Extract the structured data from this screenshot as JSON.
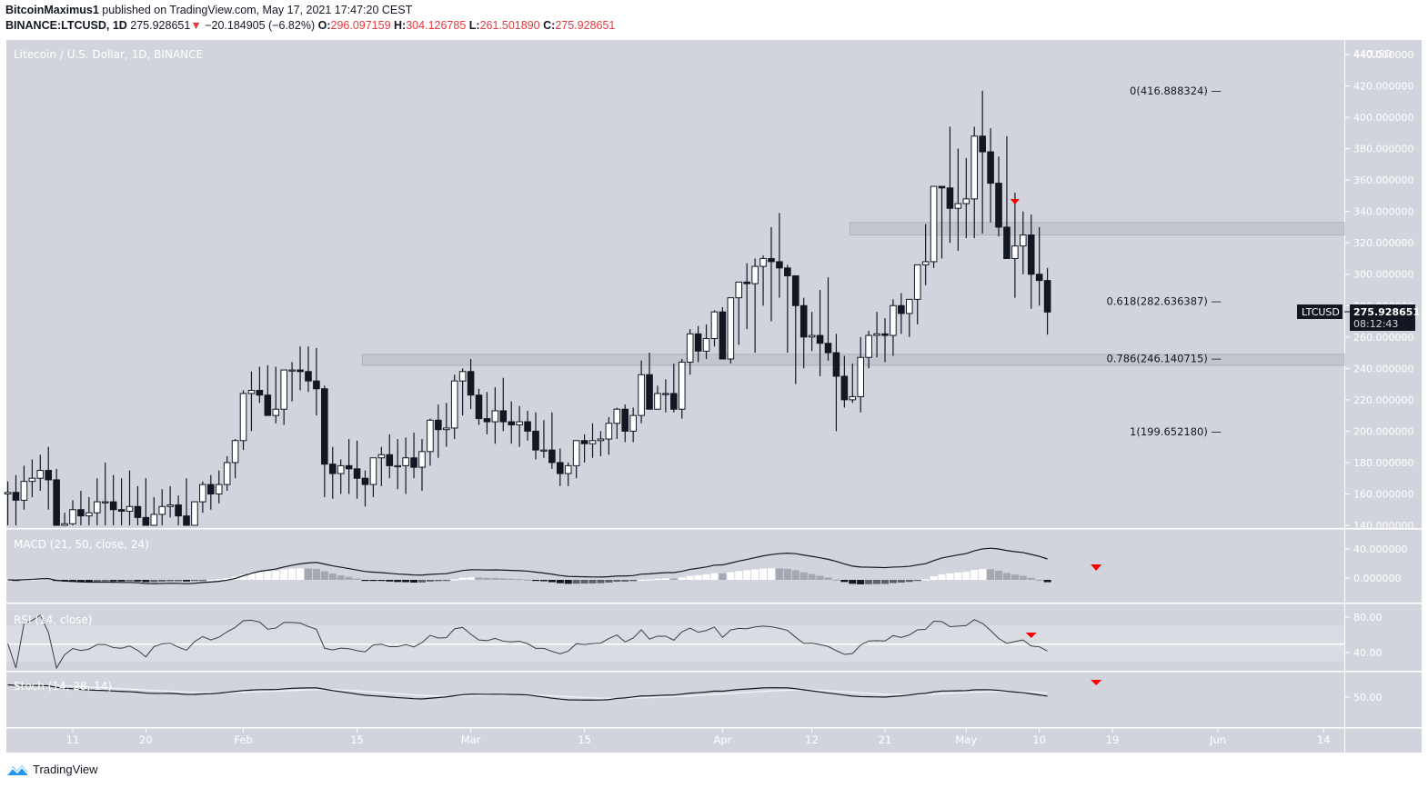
{
  "header": {
    "author": "BitcoinMaximus1",
    "published_text": " published on TradingView.com, May 17, 2021 17:47:20 CEST",
    "symbol_line": "BINANCE:LTCUSD, 1D",
    "last_price": "275.928651",
    "change_arrow": "▼",
    "change": "−20.184905 (−6.82%)",
    "o_label": "O:",
    "o_value": "296.097159",
    "h_label": "H:",
    "h_value": "304.126785",
    "l_label": "L:",
    "l_value": "261.501890",
    "c_label": "C:",
    "c_value": "275.928651"
  },
  "chart": {
    "title": "Litecoin / U.S. Dollar, 1D, BINANCE",
    "currency_label": "USD",
    "price_tag_symbol": "LTCUSD",
    "price_tag_value": "275.928651",
    "price_tag_countdown": "08:12:43",
    "macd_label": "MACD (21, 50, close, 24)",
    "rsi_label": "RSI (14, close)",
    "stoch_label": "Stoch (14, 28, 14)",
    "fib_levels": [
      {
        "label": "0(416.888324)",
        "value": 416.888324
      },
      {
        "label": "0.618(282.636387)",
        "value": 282.636387
      },
      {
        "label": "0.786(246.140715)",
        "value": 246.140715
      },
      {
        "label": "1(199.652180)",
        "value": 199.65218
      }
    ],
    "resistance_zones": [
      {
        "name": "upper-resistance-zone",
        "from": 325,
        "to": 333,
        "x_start_day": 95
      },
      {
        "name": "lower-support-zone",
        "from": 242,
        "to": 249,
        "x_start_day": 35
      }
    ],
    "bearish_markers": [
      "price",
      "macd",
      "rsi",
      "stoch"
    ]
  },
  "price_axis": {
    "ticks": [
      "440.000000",
      "420.000000",
      "400.000000",
      "380.000000",
      "360.000000",
      "340.000000",
      "320.000000",
      "300.000000",
      "280.000000",
      "260.000000",
      "240.000000",
      "220.000000",
      "200.000000",
      "180.000000",
      "160.000000",
      "140.000000"
    ]
  },
  "macd_axis": {
    "ticks": [
      "40.000000",
      "0.000000"
    ]
  },
  "rsi_axis": {
    "ticks": [
      "80.00",
      "40.00"
    ]
  },
  "stoch_axis": {
    "ticks": [
      "50.00"
    ]
  },
  "time_axis": {
    "ticks": [
      {
        "label": "11",
        "day": 0
      },
      {
        "label": "20",
        "day": 9
      },
      {
        "label": "Feb",
        "day": 21
      },
      {
        "label": "15",
        "day": 35
      },
      {
        "label": "Mar",
        "day": 49
      },
      {
        "label": "15",
        "day": 63
      },
      {
        "label": "Apr",
        "day": 80
      },
      {
        "label": "12",
        "day": 91
      },
      {
        "label": "21",
        "day": 100
      },
      {
        "label": "May",
        "day": 110
      },
      {
        "label": "10",
        "day": 119
      },
      {
        "label": "19",
        "day": 128
      },
      {
        "label": "Jun",
        "day": 141
      },
      {
        "label": "14",
        "day": 154
      }
    ]
  },
  "footer": {
    "brand": "TradingView"
  },
  "chart_data": {
    "type": "candlestick",
    "title": "Litecoin / U.S. Dollar, 1D, BINANCE",
    "symbol": "BINANCE:LTCUSD",
    "timeframe": "1D",
    "ylabel": "USD",
    "ylim": [
      140,
      440
    ],
    "x_tick_labels": [
      "11",
      "20",
      "Feb",
      "15",
      "Mar",
      "15",
      "Apr",
      "12",
      "21",
      "May",
      "10",
      "19",
      "Jun",
      "14"
    ],
    "fibonacci": {
      "0": 416.888324,
      "0.618": 282.636387,
      "0.786": 246.140715,
      "1": 199.65218
    },
    "last": {
      "open": 296.097159,
      "high": 304.126785,
      "low": 261.50189,
      "close": 275.928651,
      "change": -20.184905,
      "change_pct": -6.82
    },
    "candles_start_day": -8,
    "candles": [
      [
        160,
        168,
        125,
        161
      ],
      [
        161,
        172,
        140,
        156
      ],
      [
        156,
        178,
        150,
        168
      ],
      [
        168,
        182,
        158,
        170
      ],
      [
        170,
        185,
        162,
        175
      ],
      [
        175,
        190,
        150,
        169
      ],
      [
        169,
        176,
        108,
        125
      ],
      [
        125,
        148,
        110,
        141
      ],
      [
        141,
        156,
        128,
        150
      ],
      [
        150,
        162,
        132,
        146
      ],
      [
        146,
        158,
        120,
        148
      ],
      [
        148,
        170,
        130,
        155
      ],
      [
        155,
        180,
        140,
        155
      ],
      [
        155,
        172,
        132,
        150
      ],
      [
        150,
        170,
        128,
        149
      ],
      [
        149,
        175,
        135,
        152
      ],
      [
        152,
        165,
        133,
        145
      ],
      [
        145,
        170,
        120,
        132
      ],
      [
        132,
        158,
        120,
        147
      ],
      [
        147,
        163,
        139,
        152
      ],
      [
        152,
        165,
        145,
        153
      ],
      [
        153,
        159,
        140,
        146
      ],
      [
        146,
        170,
        133,
        140
      ],
      [
        140,
        155,
        132,
        155
      ],
      [
        155,
        168,
        148,
        166
      ],
      [
        166,
        172,
        150,
        160
      ],
      [
        160,
        175,
        154,
        166
      ],
      [
        166,
        184,
        162,
        180
      ],
      [
        180,
        195,
        170,
        194
      ],
      [
        194,
        226,
        188,
        224
      ],
      [
        224,
        238,
        200,
        226
      ],
      [
        226,
        241,
        218,
        223
      ],
      [
        223,
        242,
        212,
        210
      ],
      [
        210,
        241,
        205,
        214
      ],
      [
        214,
        237,
        204,
        239
      ],
      [
        239,
        244,
        219,
        239
      ],
      [
        239,
        254,
        226,
        238
      ],
      [
        238,
        254,
        225,
        232
      ],
      [
        232,
        253,
        210,
        227
      ],
      [
        227,
        229,
        158,
        179
      ],
      [
        179,
        190,
        157,
        173
      ],
      [
        173,
        182,
        160,
        178
      ],
      [
        178,
        195,
        160,
        176
      ],
      [
        176,
        194,
        157,
        170
      ],
      [
        170,
        175,
        152,
        166
      ],
      [
        166,
        183,
        158,
        183
      ],
      [
        183,
        190,
        165,
        185
      ],
      [
        185,
        198,
        170,
        178
      ],
      [
        178,
        195,
        163,
        178
      ],
      [
        178,
        196,
        160,
        183
      ],
      [
        183,
        199,
        170,
        177
      ],
      [
        177,
        195,
        162,
        187
      ],
      [
        187,
        208,
        178,
        207
      ],
      [
        207,
        217,
        183,
        201
      ],
      [
        201,
        218,
        190,
        202
      ],
      [
        202,
        236,
        195,
        232
      ],
      [
        232,
        240,
        210,
        238
      ],
      [
        238,
        246,
        214,
        223
      ],
      [
        223,
        227,
        204,
        208
      ],
      [
        208,
        225,
        198,
        206
      ],
      [
        206,
        228,
        192,
        213
      ],
      [
        213,
        234,
        200,
        206
      ],
      [
        206,
        219,
        192,
        204
      ],
      [
        204,
        216,
        190,
        206
      ],
      [
        206,
        213,
        194,
        200
      ],
      [
        200,
        212,
        182,
        188
      ],
      [
        188,
        207,
        183,
        188
      ],
      [
        188,
        212,
        176,
        180
      ],
      [
        180,
        189,
        165,
        173
      ],
      [
        173,
        180,
        165,
        178
      ],
      [
        178,
        193,
        170,
        194
      ],
      [
        194,
        198,
        180,
        192
      ],
      [
        192,
        205,
        183,
        194
      ],
      [
        194,
        200,
        184,
        195
      ],
      [
        195,
        209,
        185,
        205
      ],
      [
        205,
        215,
        195,
        214
      ],
      [
        214,
        217,
        193,
        200
      ],
      [
        200,
        215,
        193,
        210
      ],
      [
        210,
        245,
        205,
        236
      ],
      [
        236,
        250,
        215,
        214
      ],
      [
        214,
        229,
        215,
        224
      ],
      [
        224,
        233,
        212,
        224
      ],
      [
        224,
        243,
        212,
        214
      ],
      [
        214,
        246,
        208,
        244
      ],
      [
        244,
        265,
        236,
        262
      ],
      [
        262,
        267,
        244,
        251
      ],
      [
        251,
        268,
        246,
        259
      ],
      [
        259,
        277,
        254,
        276
      ],
      [
        276,
        279,
        247,
        246
      ],
      [
        246,
        283,
        243,
        285
      ],
      [
        285,
        293,
        255,
        295
      ],
      [
        295,
        307,
        265,
        294
      ],
      [
        294,
        310,
        250,
        305
      ],
      [
        305,
        312,
        280,
        310
      ],
      [
        310,
        330,
        270,
        308
      ],
      [
        308,
        339,
        285,
        304
      ],
      [
        304,
        306,
        250,
        299
      ],
      [
        299,
        290,
        230,
        280
      ],
      [
        280,
        285,
        240,
        260
      ],
      [
        260,
        276,
        251,
        261
      ],
      [
        261,
        290,
        235,
        256
      ],
      [
        256,
        298,
        245,
        250
      ],
      [
        250,
        262,
        200,
        235
      ],
      [
        235,
        248,
        215,
        220
      ],
      [
        220,
        243,
        218,
        222
      ],
      [
        222,
        260,
        212,
        247
      ],
      [
        247,
        264,
        240,
        261
      ],
      [
        261,
        276,
        247,
        262
      ],
      [
        262,
        272,
        244,
        261
      ],
      [
        261,
        284,
        248,
        280
      ],
      [
        280,
        288,
        262,
        275
      ],
      [
        275,
        281,
        260,
        284
      ],
      [
        284,
        306,
        268,
        306
      ],
      [
        306,
        332,
        293,
        308
      ],
      [
        308,
        332,
        304,
        356
      ],
      [
        356,
        356,
        310,
        355
      ],
      [
        355,
        394,
        320,
        342
      ],
      [
        342,
        380,
        315,
        345
      ],
      [
        345,
        374,
        323,
        348
      ],
      [
        348,
        394,
        323,
        388
      ],
      [
        388,
        417,
        326,
        378
      ],
      [
        378,
        393,
        333,
        358
      ],
      [
        358,
        375,
        324,
        330
      ],
      [
        330,
        388,
        314,
        310
      ],
      [
        310,
        352,
        285,
        318
      ],
      [
        318,
        340,
        300,
        325
      ],
      [
        325,
        338,
        278,
        300
      ],
      [
        300,
        330,
        280,
        296
      ],
      [
        296,
        304,
        261.5,
        275.9
      ]
    ],
    "indicators": {
      "macd": {
        "params": "21, 50, close, 24",
        "ylim": [
          -15,
          55
        ]
      },
      "rsi": {
        "params": "14, close",
        "levels": [
          70,
          50,
          30
        ]
      },
      "stoch": {
        "params": "14, 28, 14"
      }
    }
  }
}
